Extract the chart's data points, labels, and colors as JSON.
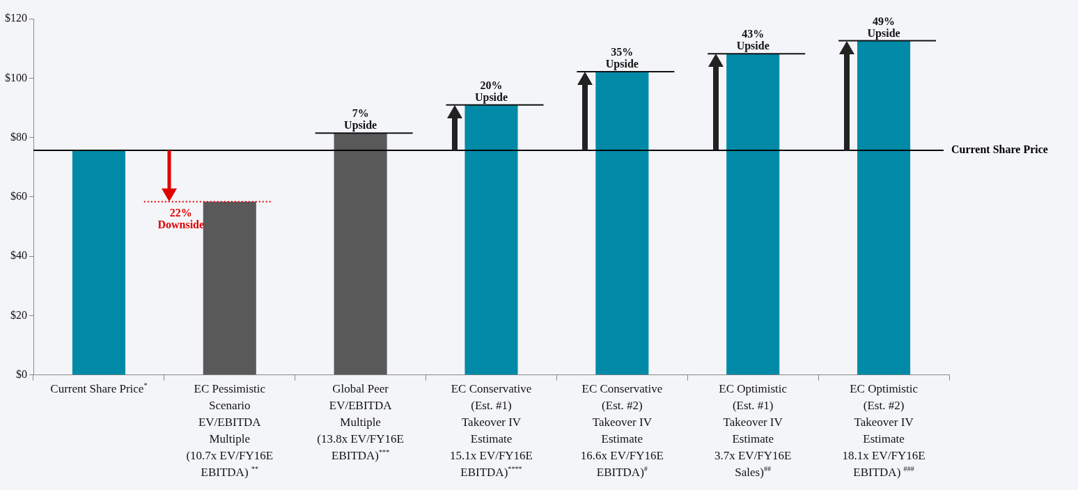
{
  "chart_data": {
    "type": "bar",
    "categories": [
      "Current Share Price$^{*}$",
      "EC Pessimistic\nScenario\nEV/EBITDA\nMultiple\n(10.7x EV/FY16E\nEBITDA) $^{**}$",
      "Global Peer\nEV/EBITDA\nMultiple\n(13.8x EV/FY16E\nEBITDA)$^{***}$",
      "EC Conservative\n(Est. #1)\nTakeover IV\nEstimate\n15.1x EV/FY16E\nEBITDA)$^{****}$",
      "EC Conservative\n(Est. #2)\nTakeover IV\nEstimate\n16.6x EV/FY16E\nEBITDA)$^{#}$",
      "EC Optimistic\n(Est. #1)\nTakeover IV\nEstimate\n3.7x EV/FY16E\nSales)$^{##}$",
      "EC Optimistic\n(Est. #2)\nTakeover IV\nEstimate\n18.1x EV/FY16E\nEBITDA) $^{###}$"
    ],
    "values": [
      75.7,
      58.4,
      81.5,
      91,
      102.2,
      108.2,
      112.6
    ],
    "colors": [
      "#008aa8",
      "#595959",
      "#595959",
      "#008aa8",
      "#008aa8",
      "#008aa8",
      "#008aa8"
    ],
    "ylim": [
      0,
      120
    ],
    "yticks": [
      {
        "value": 0,
        "label": "$0"
      },
      {
        "value": 20,
        "label": "$20"
      },
      {
        "value": 40,
        "label": "$40"
      },
      {
        "value": 60,
        "label": "$60"
      },
      {
        "value": 80,
        "label": "$80"
      },
      {
        "value": 100,
        "label": "$100"
      },
      {
        "value": 120,
        "label": "$120"
      }
    ],
    "grid": false,
    "legend": false,
    "ref_lines": [
      {
        "axis": "y",
        "value": 75.7,
        "label": "Current Share Price",
        "color": "#000000"
      },
      {
        "axis": "y",
        "value": 58.4,
        "color": "#e00000",
        "line_style": "dotted"
      },
      {
        "axis": "y",
        "value": 81.5,
        "color": "#111111"
      },
      {
        "axis": "y",
        "value": 91,
        "color": "#111111"
      },
      {
        "axis": "y",
        "value": 102.2,
        "color": "#111111"
      },
      {
        "axis": "y",
        "value": 108.2,
        "color": "#111111"
      },
      {
        "axis": "y",
        "value": 112.6,
        "color": "#111111"
      }
    ],
    "annotations": [
      {
        "text": "22%\nDownside",
        "x": "EC Pessimistic\nScenario\nEV/EBITDA\nMultiple\n(10.7x EV/FY16E\nEBITDA) $^{**}$",
        "y": 58.4
      },
      {
        "text": "7%\nUpside",
        "x": "Global Peer\nEV/EBITDA\nMultiple\n(13.8x EV/FY16E\nEBITDA)$^{***}$",
        "y": 81.5
      },
      {
        "text": "20%\nUpside",
        "x": "EC Conservative\n(Est. #1)\nTakeover IV\nEstimate\n15.1x EV/FY16E\nEBITDA)$^{****}$",
        "y": 91
      },
      {
        "text": "35%\nUpside",
        "x": "EC Conservative\n(Est. #2)\nTakeover IV\nEstimate\n16.6x EV/FY16E\nEBITDA)$^{#}$",
        "y": 102.2
      },
      {
        "text": "43%\nUpside",
        "x": "EC Optimistic\n(Est. #1)\nTakeover IV\nEstimate\n3.7x EV/FY16E\nSales)$^{##}$",
        "y": 108.2
      },
      {
        "text": "49%\nUpside",
        "x": "EC Optimistic\n(Est. #2)\nTakeover IV\nEstimate\n18.1x EV/FY16E\nEBITDA) $^{###}$",
        "y": 112.6
      }
    ]
  }
}
